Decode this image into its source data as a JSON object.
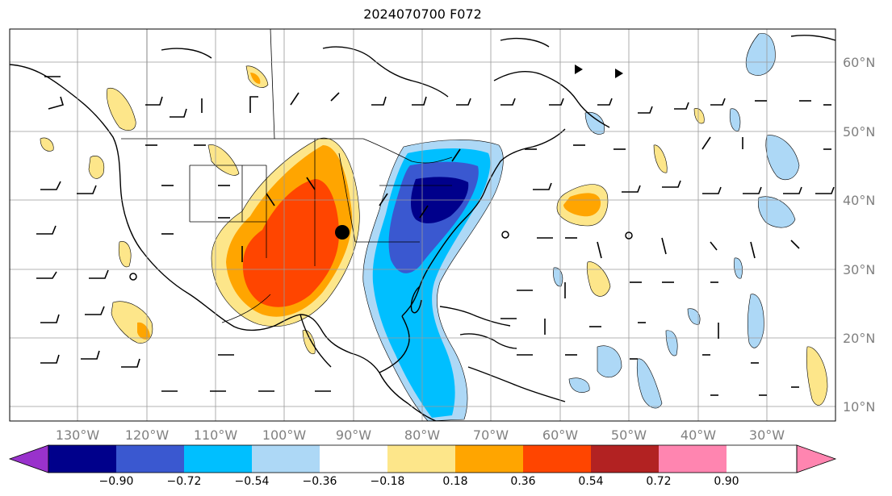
{
  "title": "2024070700 F072",
  "map": {
    "lon_labels": [
      "130°W",
      "120°W",
      "110°W",
      "100°W",
      "90°W",
      "80°W",
      "70°W",
      "60°W",
      "50°W",
      "40°W",
      "30°W"
    ],
    "lat_labels": [
      "60°N",
      "50°N",
      "40°N",
      "30°N",
      "20°N",
      "10°N"
    ]
  },
  "colorbar": {
    "ticks": [
      "−0.90",
      "−0.72",
      "−0.54",
      "−0.36",
      "−0.18",
      "0.18",
      "0.36",
      "0.54",
      "0.72",
      "0.90"
    ],
    "colors": [
      "#9932cc",
      "#00008b",
      "#3a58d0",
      "#00bfff",
      "#add8f6",
      "#ffffff",
      "#fde68a",
      "#ffa500",
      "#ff4500",
      "#b22222",
      "#ff85b0"
    ]
  },
  "colors": {
    "warm_light": "#fde68a",
    "warm_mid": "#ffa500",
    "warm_strong": "#ff4500",
    "cool_light": "#add8f6",
    "cool_mid": "#00bfff",
    "cool_strong": "#3a58d0",
    "cool_extreme": "#00008b"
  }
}
